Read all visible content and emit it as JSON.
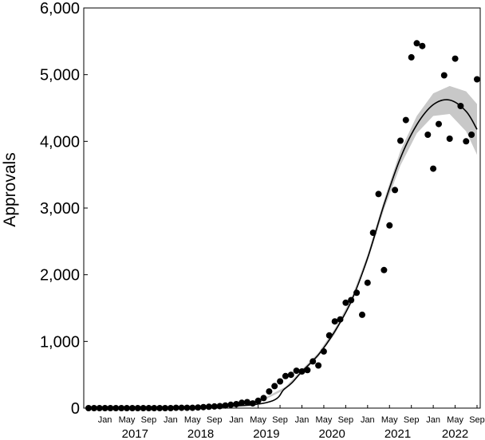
{
  "chart_data": {
    "type": "scatter",
    "title": "",
    "xlabel": "",
    "ylabel": "Approvals",
    "ylim": [
      0,
      6000
    ],
    "yticks": [
      0,
      1000,
      2000,
      3000,
      4000,
      5000,
      6000
    ],
    "ytick_labels": [
      "0",
      "1,000",
      "2,000",
      "3,000",
      "4,000",
      "5,000",
      "6,000"
    ],
    "xlim": [
      "2016-10",
      "2022-09"
    ],
    "month_tick_labels": [
      "Jan",
      "May",
      "Sep"
    ],
    "year_labels": [
      "2017",
      "2018",
      "2019",
      "2020",
      "2021",
      "2022"
    ],
    "grid": false,
    "legend": "none",
    "colors": {
      "points": "#000000",
      "fit_line": "#000000",
      "confidence_band": "#c8c8c8"
    },
    "series": [
      {
        "type": "scatter",
        "x": [
          "2016-10",
          "2016-11",
          "2016-12",
          "2017-01",
          "2017-02",
          "2017-03",
          "2017-04",
          "2017-05",
          "2017-06",
          "2017-07",
          "2017-08",
          "2017-09",
          "2017-10",
          "2017-11",
          "2017-12",
          "2018-01",
          "2018-02",
          "2018-03",
          "2018-04",
          "2018-05",
          "2018-06",
          "2018-07",
          "2018-08",
          "2018-09",
          "2018-10",
          "2018-11",
          "2018-12",
          "2019-01",
          "2019-02",
          "2019-03",
          "2019-04",
          "2019-05",
          "2019-06",
          "2019-07",
          "2019-08",
          "2019-09",
          "2019-10",
          "2019-11",
          "2019-12",
          "2020-01",
          "2020-02",
          "2020-03",
          "2020-04",
          "2020-05",
          "2020-06",
          "2020-07",
          "2020-08",
          "2020-09",
          "2020-10",
          "2020-11",
          "2020-12",
          "2021-01",
          "2021-02",
          "2021-03",
          "2021-04",
          "2021-05",
          "2021-06",
          "2021-07",
          "2021-08",
          "2021-09",
          "2021-10",
          "2021-11",
          "2021-12",
          "2022-01",
          "2022-02",
          "2022-03",
          "2022-04",
          "2022-05",
          "2022-06",
          "2022-07",
          "2022-08",
          "2022-09"
        ],
        "y": [
          0,
          0,
          0,
          0,
          0,
          0,
          0,
          0,
          0,
          0,
          0,
          0,
          0,
          0,
          0,
          0,
          5,
          5,
          5,
          5,
          10,
          15,
          20,
          25,
          30,
          40,
          50,
          60,
          80,
          90,
          70,
          110,
          150,
          250,
          330,
          400,
          480,
          500,
          560,
          550,
          570,
          700,
          640,
          850,
          1090,
          1300,
          1330,
          1580,
          1620,
          1730,
          1400,
          1880,
          2630,
          3210,
          2070,
          2740,
          3270,
          4010,
          4320,
          5260,
          5470,
          5430,
          4100,
          3590,
          4260,
          4990,
          4040,
          5240,
          4530,
          4000,
          4100,
          4930
        ]
      },
      {
        "type": "line",
        "x": [
          "2016-10",
          "2019-04",
          "2019-10",
          "2020-01",
          "2020-04",
          "2020-07",
          "2020-10",
          "2021-01",
          "2021-04",
          "2021-07",
          "2021-10",
          "2022-01",
          "2022-04",
          "2022-07",
          "2022-09"
        ],
        "y": [
          0,
          50,
          300,
          550,
          800,
          1150,
          1600,
          2250,
          3050,
          3750,
          4250,
          4550,
          4620,
          4450,
          4180
        ]
      },
      {
        "type": "area",
        "x": [
          "2016-10",
          "2019-04",
          "2019-10",
          "2020-01",
          "2020-04",
          "2020-07",
          "2020-10",
          "2021-01",
          "2021-04",
          "2021-07",
          "2021-10",
          "2022-01",
          "2022-04",
          "2022-07",
          "2022-09"
        ],
        "y_low": [
          0,
          40,
          280,
          520,
          770,
          1110,
          1560,
          2200,
          2980,
          3640,
          4120,
          4380,
          4410,
          4150,
          3800
        ],
        "y_high": [
          0,
          60,
          320,
          580,
          830,
          1190,
          1640,
          2300,
          3120,
          3860,
          4380,
          4720,
          4830,
          4750,
          4560
        ]
      }
    ]
  }
}
